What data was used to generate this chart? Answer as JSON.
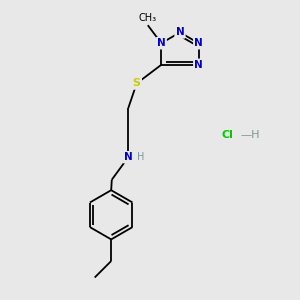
{
  "background_color": "#e8e8e8",
  "bond_color": "#000000",
  "n_color": "#0000cc",
  "s_color": "#cccc00",
  "cl_color": "#00cc00",
  "h_color": "#7a9999",
  "lw": 1.3,
  "fs": 7.5,
  "figsize": [
    3.0,
    3.0
  ],
  "dpi": 100,
  "xlim": [
    0,
    10
  ],
  "ylim": [
    0,
    10
  ]
}
